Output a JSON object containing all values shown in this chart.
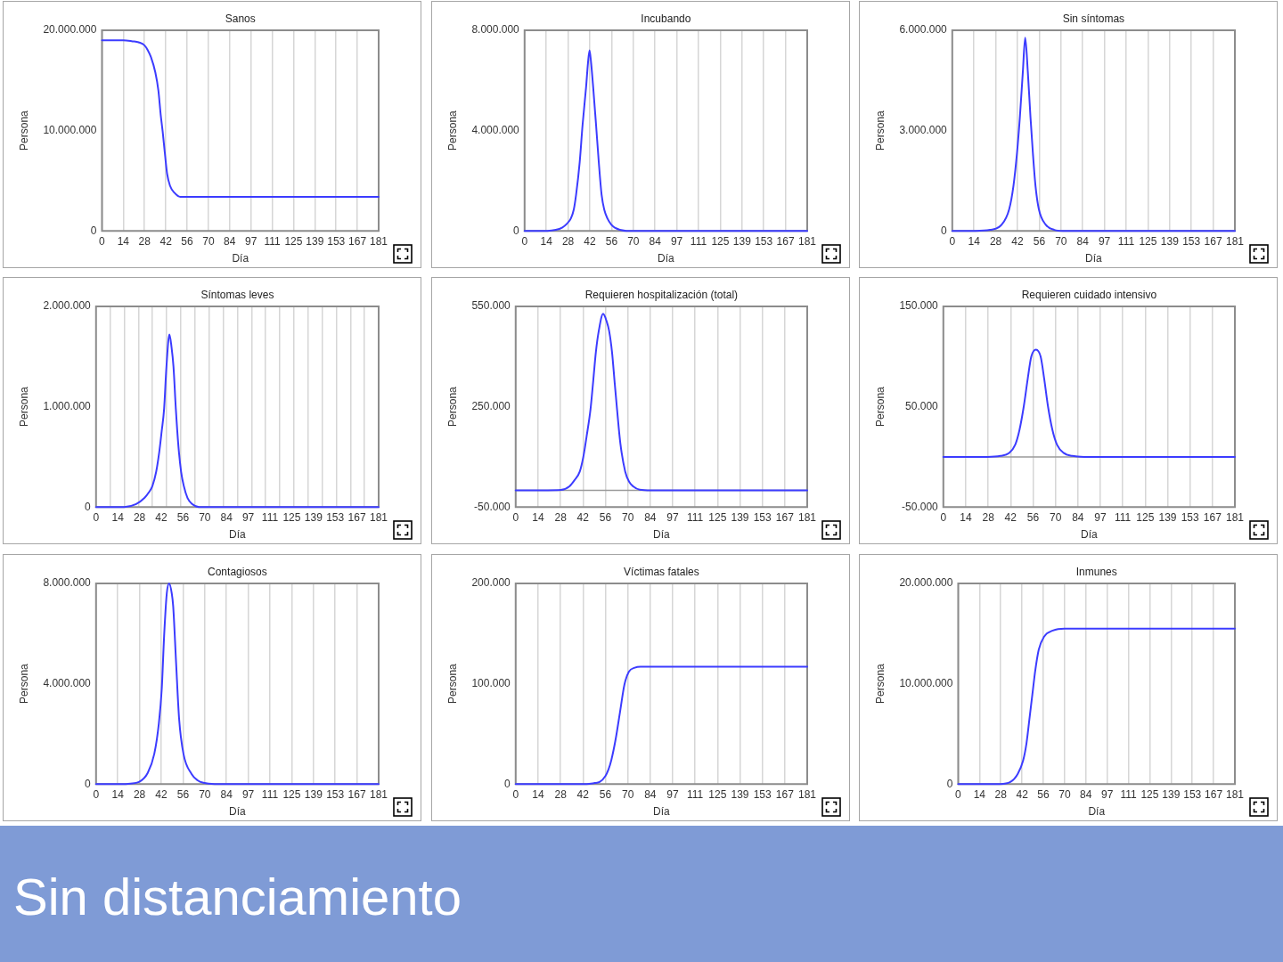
{
  "chart_data": [
    {
      "type": "line",
      "title": "Sanos",
      "xlabel": "Día",
      "ylabel": "Persona",
      "color": "#3c3cff",
      "grid": "x",
      "xlim": [
        0,
        181
      ],
      "ylim": [
        0,
        20000000
      ],
      "xticks": [
        {
          "value": 0,
          "label": "0"
        },
        {
          "value": 13.92,
          "label": "14"
        },
        {
          "value": 27.85,
          "label": "28"
        },
        {
          "value": 41.77,
          "label": "42"
        },
        {
          "value": 55.69,
          "label": "56"
        },
        {
          "value": 69.62,
          "label": "70"
        },
        {
          "value": 83.54,
          "label": "84"
        },
        {
          "value": 97.46,
          "label": "97"
        },
        {
          "value": 111.38,
          "label": "111"
        },
        {
          "value": 125.31,
          "label": "125"
        },
        {
          "value": 139.23,
          "label": "139"
        },
        {
          "value": 153.15,
          "label": "153"
        },
        {
          "value": 167.08,
          "label": "167"
        },
        {
          "value": 181,
          "label": "181"
        }
      ],
      "yticks": [
        {
          "value": 0,
          "label": "0"
        },
        {
          "value": 10000000,
          "label": "10.000.000"
        },
        {
          "value": 20000000,
          "label": "20.000.000"
        }
      ],
      "x": [
        0,
        14,
        20,
        24,
        27.8,
        30,
        32.1,
        34.9,
        36.9,
        38.4,
        39.7,
        41.3,
        42.6,
        44.5,
        47.4,
        51.2,
        56,
        100,
        181
      ],
      "values": [
        19000000,
        19000000,
        18900000,
        18800000,
        18500000,
        18000000,
        17300000,
        15800000,
        14000000,
        11600000,
        9900000,
        7500000,
        5700000,
        4500000,
        3800000,
        3400000,
        3400000,
        3400000,
        3400000
      ]
    },
    {
      "type": "line",
      "title": "Incubando",
      "xlabel": "Día",
      "ylabel": "Persona",
      "color": "#3c3cff",
      "grid": "x",
      "xlim": [
        0,
        181
      ],
      "ylim": [
        0,
        8000000
      ],
      "xticks": [
        {
          "value": 0,
          "label": "0"
        },
        {
          "value": 13.92,
          "label": "14"
        },
        {
          "value": 27.85,
          "label": "28"
        },
        {
          "value": 41.77,
          "label": "42"
        },
        {
          "value": 55.69,
          "label": "56"
        },
        {
          "value": 69.62,
          "label": "70"
        },
        {
          "value": 83.54,
          "label": "84"
        },
        {
          "value": 97.46,
          "label": "97"
        },
        {
          "value": 111.38,
          "label": "111"
        },
        {
          "value": 125.31,
          "label": "125"
        },
        {
          "value": 139.23,
          "label": "139"
        },
        {
          "value": 153.15,
          "label": "153"
        },
        {
          "value": 167.08,
          "label": "167"
        },
        {
          "value": 181,
          "label": "181"
        }
      ],
      "yticks": [
        {
          "value": 0,
          "label": "0"
        },
        {
          "value": 4000000,
          "label": "4.000.000"
        },
        {
          "value": 8000000,
          "label": "8.000.000"
        }
      ],
      "x": [
        0,
        14.6,
        20,
        24,
        27,
        29.6,
        31.5,
        33,
        35.3,
        37.1,
        39.4,
        40.6,
        41.6,
        42.6,
        43.9,
        45.8,
        47.5,
        49.3,
        51,
        53.1,
        55.5,
        57.8,
        65.3,
        181
      ],
      "values": [
        0,
        0,
        40000,
        130000,
        280000,
        490000,
        850000,
        1450000,
        2750000,
        4200000,
        5750000,
        6700000,
        7200000,
        6700000,
        5750000,
        4200000,
        2750000,
        1450000,
        850000,
        490000,
        250000,
        130000,
        0,
        0
      ]
    },
    {
      "type": "line",
      "title": "Sin síntomas",
      "xlabel": "Día",
      "ylabel": "Persona",
      "color": "#3c3cff",
      "grid": "x",
      "xlim": [
        0,
        181
      ],
      "ylim": [
        0,
        6000000
      ],
      "xticks": [
        {
          "value": 0,
          "label": "0"
        },
        {
          "value": 13.92,
          "label": "14"
        },
        {
          "value": 27.85,
          "label": "28"
        },
        {
          "value": 41.77,
          "label": "42"
        },
        {
          "value": 55.69,
          "label": "56"
        },
        {
          "value": 69.62,
          "label": "70"
        },
        {
          "value": 83.54,
          "label": "84"
        },
        {
          "value": 97.46,
          "label": "97"
        },
        {
          "value": 111.38,
          "label": "111"
        },
        {
          "value": 125.31,
          "label": "125"
        },
        {
          "value": 139.23,
          "label": "139"
        },
        {
          "value": 153.15,
          "label": "153"
        },
        {
          "value": 167.08,
          "label": "167"
        },
        {
          "value": 181,
          "label": "181"
        }
      ],
      "yticks": [
        {
          "value": 0,
          "label": "0"
        },
        {
          "value": 3000000,
          "label": "3.000.000"
        },
        {
          "value": 6000000,
          "label": "6.000.000"
        }
      ],
      "x": [
        0,
        14.8,
        24.2,
        31.7,
        36.4,
        39.2,
        41.5,
        43.3,
        45.2,
        46.7,
        48.4,
        50.1,
        51.6,
        53.3,
        55.5,
        59.8,
        65.4,
        71,
        181
      ],
      "values": [
        0,
        0,
        30000,
        190000,
        640000,
        1350000,
        2350000,
        3400000,
        4750000,
        5780000,
        4750000,
        3400000,
        2350000,
        1350000,
        640000,
        190000,
        30000,
        0,
        0
      ]
    },
    {
      "type": "line",
      "title": "Síntomas leves",
      "xlabel": "Día",
      "ylabel": "Persona",
      "color": "#3c3cff",
      "grid": "x",
      "xlim": [
        0,
        181
      ],
      "ylim": [
        0,
        2000000
      ],
      "xticks": [
        {
          "value": 0,
          "label": "0"
        },
        {
          "value": 9.05,
          "label": null
        },
        {
          "value": 13.92,
          "label": "14"
        },
        {
          "value": 18.1,
          "label": null
        },
        {
          "value": 27.15,
          "label": null
        },
        {
          "value": 27.85,
          "label": "28"
        },
        {
          "value": 36.2,
          "label": null
        },
        {
          "value": 41.77,
          "label": "42"
        },
        {
          "value": 45.25,
          "label": null
        },
        {
          "value": 54.3,
          "label": null
        },
        {
          "value": 55.69,
          "label": "56"
        },
        {
          "value": 63.35,
          "label": null
        },
        {
          "value": 69.62,
          "label": "70"
        },
        {
          "value": 72.4,
          "label": null
        },
        {
          "value": 81.45,
          "label": null
        },
        {
          "value": 83.54,
          "label": "84"
        },
        {
          "value": 90.5,
          "label": null
        },
        {
          "value": 97.46,
          "label": "97"
        },
        {
          "value": 99.55,
          "label": null
        },
        {
          "value": 108.6,
          "label": null
        },
        {
          "value": 111.38,
          "label": "111"
        },
        {
          "value": 117.65,
          "label": null
        },
        {
          "value": 125.31,
          "label": "125"
        },
        {
          "value": 126.7,
          "label": null
        },
        {
          "value": 135.75,
          "label": null
        },
        {
          "value": 139.23,
          "label": "139"
        },
        {
          "value": 144.8,
          "label": null
        },
        {
          "value": 153.15,
          "label": "153"
        },
        {
          "value": 153.85,
          "label": null
        },
        {
          "value": 162.9,
          "label": null
        },
        {
          "value": 167.08,
          "label": "167"
        },
        {
          "value": 171.95,
          "label": null
        },
        {
          "value": 181,
          "label": "181"
        }
      ],
      "yticks": [
        {
          "value": 0,
          "label": "0"
        },
        {
          "value": 1000000,
          "label": "1.000.000"
        },
        {
          "value": 2000000,
          "label": "2.000.000"
        }
      ],
      "x": [
        0,
        18,
        25.7,
        31,
        34,
        36.1,
        38.5,
        40.5,
        42,
        43.6,
        45.1,
        47,
        48.3,
        49.6,
        51.1,
        52.8,
        54.5,
        56.2,
        58.6,
        61.5,
        66,
        181
      ],
      "values": [
        0,
        0,
        30000,
        90000,
        150000,
        210000,
        350000,
        550000,
        750000,
        980000,
        1400000,
        1720000,
        1600000,
        1400000,
        980000,
        600000,
        350000,
        210000,
        90000,
        30000,
        0,
        0
      ]
    },
    {
      "type": "line",
      "title": "Requieren hospitalización (total)",
      "xlabel": "Día",
      "ylabel": "Persona",
      "color": "#3c3cff",
      "grid": "x",
      "xlim": [
        0,
        181
      ],
      "ylim": [
        -50000,
        550000
      ],
      "xticks": [
        {
          "value": 0,
          "label": "0"
        },
        {
          "value": 13.92,
          "label": "14"
        },
        {
          "value": 27.85,
          "label": "28"
        },
        {
          "value": 41.77,
          "label": "42"
        },
        {
          "value": 55.69,
          "label": "56"
        },
        {
          "value": 69.62,
          "label": "70"
        },
        {
          "value": 83.54,
          "label": "84"
        },
        {
          "value": 97.46,
          "label": "97"
        },
        {
          "value": 111.38,
          "label": "111"
        },
        {
          "value": 125.31,
          "label": "125"
        },
        {
          "value": 139.23,
          "label": "139"
        },
        {
          "value": 153.15,
          "label": "153"
        },
        {
          "value": 167.08,
          "label": "167"
        },
        {
          "value": 181,
          "label": "181"
        }
      ],
      "yticks": [
        {
          "value": -50000,
          "label": "-50.000"
        },
        {
          "value": 250000,
          "label": "250.000"
        },
        {
          "value": 550000,
          "label": "550.000"
        }
      ],
      "ref_lines": [
        {
          "axis": "y",
          "value": 0,
          "color": "#9a9a9a"
        }
      ],
      "x": [
        0,
        20,
        28,
        33.4,
        36.5,
        39.8,
        42,
        44,
        46.5,
        48.2,
        49.8,
        51.6,
        54.3,
        56.5,
        58,
        59.8,
        61.5,
        62.9,
        65,
        68,
        70.5,
        72.9,
        77,
        84,
        181
      ],
      "values": [
        0,
        0,
        1000,
        12000,
        30000,
        56000,
        100000,
        160000,
        244000,
        330000,
        414000,
        477000,
        528000,
        505000,
        477000,
        414000,
        320000,
        244000,
        140000,
        56000,
        25000,
        12000,
        2000,
        0,
        0
      ]
    },
    {
      "type": "line",
      "title": "Requieren cuidado intensivo",
      "xlabel": "Día",
      "ylabel": "Persona",
      "color": "#3c3cff",
      "grid": "x",
      "xlim": [
        0,
        181
      ],
      "ylim": [
        -50000,
        150000
      ],
      "xticks": [
        {
          "value": 0,
          "label": "0"
        },
        {
          "value": 13.92,
          "label": "14"
        },
        {
          "value": 27.85,
          "label": "28"
        },
        {
          "value": 41.77,
          "label": "42"
        },
        {
          "value": 55.69,
          "label": "56"
        },
        {
          "value": 69.62,
          "label": "70"
        },
        {
          "value": 83.54,
          "label": "84"
        },
        {
          "value": 97.46,
          "label": "97"
        },
        {
          "value": 111.38,
          "label": "111"
        },
        {
          "value": 125.31,
          "label": "125"
        },
        {
          "value": 139.23,
          "label": "139"
        },
        {
          "value": 153.15,
          "label": "153"
        },
        {
          "value": 167.08,
          "label": "167"
        },
        {
          "value": 181,
          "label": "181"
        }
      ],
      "yticks": [
        {
          "value": -50000,
          "label": "-50.000"
        },
        {
          "value": 50000,
          "label": "50.000"
        },
        {
          "value": 150000,
          "label": "150.000"
        }
      ],
      "ref_lines": [
        {
          "axis": "y",
          "value": 0,
          "color": "#9a9a9a"
        }
      ],
      "x": [
        0,
        27.3,
        35.5,
        40.9,
        44.6,
        47.3,
        50,
        52.4,
        54.6,
        57.5,
        60.4,
        62.6,
        64.9,
        67.7,
        70.6,
        74.6,
        80,
        87.3,
        181
      ],
      "values": [
        0,
        0,
        1000,
        4000,
        12000,
        27000,
        51000,
        78000,
        100000,
        107000,
        100000,
        78000,
        51000,
        27000,
        12000,
        4000,
        1000,
        0,
        0
      ]
    },
    {
      "type": "line",
      "title": "Contagiosos",
      "xlabel": "Día",
      "ylabel": "Persona",
      "color": "#3c3cff",
      "grid": "x",
      "xlim": [
        0,
        181
      ],
      "ylim": [
        0,
        8000000
      ],
      "xticks": [
        {
          "value": 0,
          "label": "0"
        },
        {
          "value": 13.92,
          "label": "14"
        },
        {
          "value": 27.85,
          "label": "28"
        },
        {
          "value": 41.77,
          "label": "42"
        },
        {
          "value": 55.69,
          "label": "56"
        },
        {
          "value": 69.62,
          "label": "70"
        },
        {
          "value": 83.54,
          "label": "84"
        },
        {
          "value": 97.46,
          "label": "97"
        },
        {
          "value": 111.38,
          "label": "111"
        },
        {
          "value": 125.31,
          "label": "125"
        },
        {
          "value": 139.23,
          "label": "139"
        },
        {
          "value": 153.15,
          "label": "153"
        },
        {
          "value": 167.08,
          "label": "167"
        },
        {
          "value": 181,
          "label": "181"
        }
      ],
      "yticks": [
        {
          "value": 0,
          "label": "0"
        },
        {
          "value": 4000000,
          "label": "4.000.000"
        },
        {
          "value": 8000000,
          "label": "8.000.000"
        }
      ],
      "x": [
        0,
        16.3,
        22,
        27.5,
        33.1,
        37.3,
        40.2,
        42.1,
        43.6,
        45.3,
        46.8,
        48.5,
        49.4,
        51.3,
        53.2,
        56,
        61.2,
        65,
        68.7,
        76,
        181
      ],
      "values": [
        0,
        0,
        20000,
        80000,
        440000,
        1200000,
        2400000,
        3800000,
        5900000,
        7600000,
        8000000,
        7600000,
        7100000,
        4800000,
        2600000,
        1200000,
        400000,
        150000,
        50000,
        0,
        0
      ]
    },
    {
      "type": "line",
      "title": "Víctimas fatales",
      "xlabel": "Día",
      "ylabel": "Persona",
      "color": "#3c3cff",
      "grid": "x",
      "xlim": [
        0,
        181
      ],
      "ylim": [
        0,
        200000
      ],
      "xticks": [
        {
          "value": 0,
          "label": "0"
        },
        {
          "value": 13.92,
          "label": "14"
        },
        {
          "value": 27.85,
          "label": "28"
        },
        {
          "value": 41.77,
          "label": "42"
        },
        {
          "value": 55.69,
          "label": "56"
        },
        {
          "value": 69.62,
          "label": "70"
        },
        {
          "value": 83.54,
          "label": "84"
        },
        {
          "value": 97.46,
          "label": "97"
        },
        {
          "value": 111.38,
          "label": "111"
        },
        {
          "value": 125.31,
          "label": "125"
        },
        {
          "value": 139.23,
          "label": "139"
        },
        {
          "value": 153.15,
          "label": "153"
        },
        {
          "value": 167.08,
          "label": "167"
        },
        {
          "value": 181,
          "label": "181"
        }
      ],
      "yticks": [
        {
          "value": 0,
          "label": "0"
        },
        {
          "value": 100000,
          "label": "100.000"
        },
        {
          "value": 200000,
          "label": "200.000"
        }
      ],
      "x": [
        0,
        44,
        49,
        52.1,
        55.7,
        57.5,
        59.4,
        62.1,
        64.8,
        67.5,
        70.3,
        73.9,
        77.5,
        90,
        181
      ],
      "values": [
        0,
        0,
        1000,
        2000,
        8000,
        14000,
        24000,
        45000,
        72000,
        99000,
        112000,
        116000,
        117000,
        117000,
        117000
      ]
    },
    {
      "type": "line",
      "title": "Inmunes",
      "xlabel": "Día",
      "ylabel": "Persona",
      "color": "#3c3cff",
      "grid": "x",
      "xlim": [
        0,
        181
      ],
      "ylim": [
        0,
        20000000
      ],
      "xticks": [
        {
          "value": 0,
          "label": "0"
        },
        {
          "value": 13.92,
          "label": "14"
        },
        {
          "value": 27.85,
          "label": "28"
        },
        {
          "value": 41.77,
          "label": "42"
        },
        {
          "value": 55.69,
          "label": "56"
        },
        {
          "value": 69.62,
          "label": "70"
        },
        {
          "value": 83.54,
          "label": "84"
        },
        {
          "value": 97.46,
          "label": "97"
        },
        {
          "value": 111.38,
          "label": "111"
        },
        {
          "value": 125.31,
          "label": "125"
        },
        {
          "value": 139.23,
          "label": "139"
        },
        {
          "value": 153.15,
          "label": "153"
        },
        {
          "value": 167.08,
          "label": "167"
        },
        {
          "value": 181,
          "label": "181"
        }
      ],
      "yticks": [
        {
          "value": 0,
          "label": "0"
        },
        {
          "value": 10000000,
          "label": "10.000.000"
        },
        {
          "value": 20000000,
          "label": "20.000.000"
        }
      ],
      "x": [
        0,
        27.4,
        34.1,
        38.9,
        42.4,
        44.7,
        46.6,
        48.5,
        50.4,
        52.7,
        56.2,
        61.9,
        69.6,
        181
      ],
      "values": [
        0,
        0,
        200000,
        1000000,
        2300000,
        4100000,
        6500000,
        8900000,
        11300000,
        13400000,
        14700000,
        15300000,
        15500000,
        15500000
      ]
    },
    {
      "type": "other",
      "title": "Sin distanciamiento"
    }
  ]
}
